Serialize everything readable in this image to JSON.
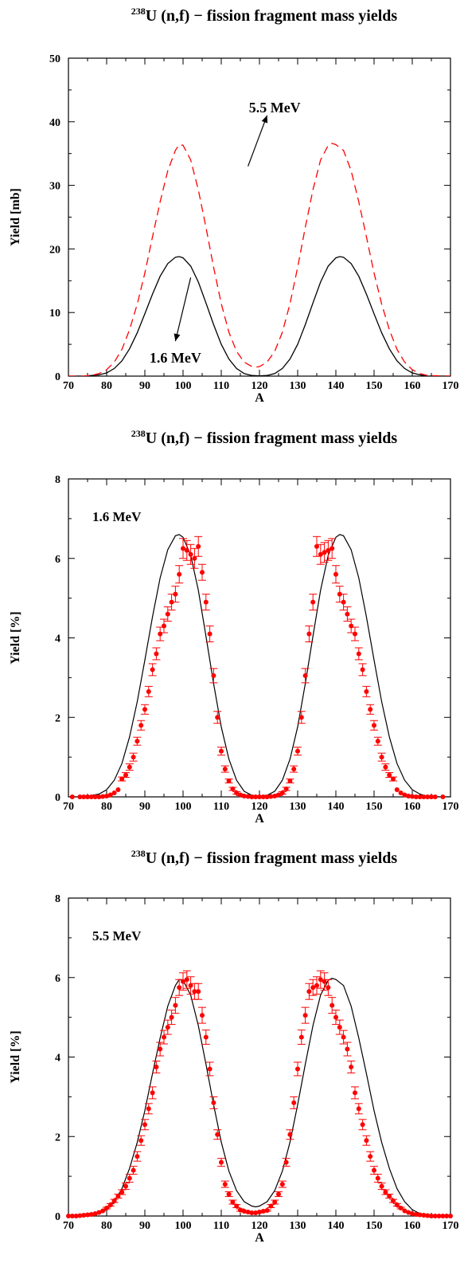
{
  "chart_data": [
    {
      "type": "line",
      "title_sup": "238",
      "title": "U (n,f) − fission fragment mass yields",
      "xlabel": "A",
      "ylabel": "Yield [mb]",
      "xlim": [
        70,
        170
      ],
      "ylim": [
        0,
        50
      ],
      "xticks": [
        "70",
        "80",
        "90",
        "100",
        "110",
        "120",
        "130",
        "140",
        "150",
        "160",
        "170"
      ],
      "yticks": [
        "0",
        "10",
        "20",
        "30",
        "40",
        "50"
      ],
      "grid": false,
      "series": [
        {
          "name": "1.6 MeV",
          "style": "solid",
          "color": "#000000",
          "x": [
            70,
            74,
            78,
            80,
            82,
            84,
            86,
            88,
            90,
            92,
            94,
            96,
            98,
            99,
            100,
            102,
            104,
            106,
            108,
            110,
            112,
            114,
            116,
            118,
            120,
            122,
            124,
            126,
            128,
            130,
            132,
            134,
            136,
            138,
            140,
            141,
            142,
            144,
            146,
            148,
            150,
            152,
            154,
            156,
            158,
            160,
            162,
            164,
            166,
            170
          ],
          "y": [
            0,
            0,
            0.2,
            0.5,
            1.2,
            2.4,
            4.3,
            6.8,
            9.8,
            12.9,
            15.7,
            17.7,
            18.7,
            18.8,
            18.6,
            17.3,
            14.8,
            11.5,
            8.1,
            5.0,
            2.7,
            1.2,
            0.4,
            0.1,
            0.05,
            0.1,
            0.4,
            1.2,
            2.7,
            5.0,
            8.1,
            11.5,
            14.8,
            17.3,
            18.6,
            18.8,
            18.7,
            17.7,
            15.7,
            12.9,
            9.8,
            6.8,
            4.3,
            2.4,
            1.2,
            0.5,
            0.2,
            0,
            0,
            0
          ]
        },
        {
          "name": "5.5 MeV",
          "style": "dashed",
          "color": "#ff0000",
          "x": [
            70,
            74,
            76,
            78,
            80,
            82,
            84,
            86,
            88,
            90,
            92,
            94,
            96,
            98,
            99,
            100,
            102,
            104,
            106,
            108,
            110,
            112,
            114,
            116,
            118,
            119,
            120,
            122,
            124,
            126,
            128,
            130,
            132,
            134,
            136,
            138,
            139,
            140,
            142,
            144,
            146,
            148,
            150,
            152,
            154,
            156,
            158,
            160,
            162,
            164,
            170
          ],
          "y": [
            0,
            0,
            0.1,
            0.4,
            1.0,
            2.2,
            4.2,
            7.3,
            11.3,
            16.2,
            21.9,
            27.4,
            32.3,
            35.5,
            36.4,
            36.3,
            34.0,
            29.3,
            23.4,
            17.1,
            11.4,
            6.9,
            3.9,
            2.2,
            1.5,
            1.4,
            1.5,
            2.2,
            3.9,
            6.9,
            11.4,
            17.1,
            23.4,
            29.3,
            34.0,
            36.3,
            36.6,
            36.4,
            35.5,
            32.3,
            27.4,
            21.9,
            16.2,
            11.3,
            7.3,
            4.2,
            2.2,
            1.0,
            0.4,
            0.1,
            0
          ]
        }
      ],
      "annotations": [
        {
          "text": "5.5 MeV",
          "x": 124,
          "y": 41.5
        },
        {
          "text": "1.6 MeV",
          "x": 98,
          "y": 2.1
        }
      ],
      "arrows": [
        {
          "from": [
            117,
            33
          ],
          "to": [
            122,
            41
          ]
        },
        {
          "from": [
            102,
            15.5
          ],
          "to": [
            98,
            5.5
          ]
        }
      ]
    },
    {
      "type": "scatter",
      "title_sup": "238",
      "title": "U (n,f) − fission fragment mass yields",
      "xlabel": "A",
      "ylabel": "Yield [%]",
      "xlim": [
        70,
        170
      ],
      "ylim": [
        0,
        8
      ],
      "xticks": [
        "70",
        "80",
        "90",
        "100",
        "110",
        "120",
        "130",
        "140",
        "150",
        "160",
        "170"
      ],
      "yticks": [
        "0",
        "2",
        "4",
        "6",
        "8"
      ],
      "grid": false,
      "label": "1.6 MeV",
      "curve": {
        "x": [
          70,
          74,
          78,
          80,
          82,
          84,
          86,
          88,
          90,
          92,
          94,
          96,
          98,
          99,
          100,
          102,
          104,
          106,
          108,
          110,
          112,
          114,
          116,
          118,
          120,
          122,
          124,
          126,
          128,
          130,
          132,
          134,
          136,
          138,
          140,
          141,
          142,
          144,
          146,
          148,
          150,
          152,
          154,
          156,
          158,
          160,
          162,
          164,
          166,
          170
        ],
        "y": [
          0,
          0,
          0.07,
          0.18,
          0.42,
          0.84,
          1.51,
          2.39,
          3.44,
          4.53,
          5.51,
          6.22,
          6.57,
          6.6,
          6.53,
          6.08,
          5.2,
          4.04,
          2.85,
          1.76,
          0.95,
          0.42,
          0.14,
          0.04,
          0.02,
          0.04,
          0.14,
          0.42,
          0.95,
          1.76,
          2.85,
          4.04,
          5.2,
          6.08,
          6.53,
          6.6,
          6.57,
          6.22,
          5.51,
          4.53,
          3.44,
          2.39,
          1.51,
          0.84,
          0.42,
          0.18,
          0.07,
          0,
          0,
          0
        ]
      },
      "points": {
        "x": [
          71,
          73,
          74,
          75,
          76,
          77,
          78,
          79,
          80,
          81,
          82,
          83,
          84,
          85,
          86,
          87,
          88,
          89,
          90,
          91,
          92,
          93,
          94,
          95,
          96,
          97,
          98,
          99,
          100,
          101,
          102,
          103,
          104,
          105,
          106,
          107,
          108,
          109,
          110,
          111,
          112,
          113,
          114,
          115,
          116,
          117,
          118,
          119,
          120,
          121,
          122,
          123,
          124,
          125,
          126,
          127,
          128,
          129,
          130,
          131,
          132,
          133,
          134,
          135,
          136,
          137,
          138,
          139,
          140,
          141,
          142,
          143,
          144,
          145,
          146,
          147,
          148,
          149,
          150,
          151,
          152,
          153,
          154,
          155,
          156,
          157,
          158,
          159,
          160,
          161,
          162,
          163,
          164,
          165,
          166,
          168
        ],
        "y": [
          0,
          0,
          0,
          0,
          0,
          0,
          0,
          0.01,
          0.02,
          0.05,
          0.1,
          0.18,
          0.45,
          0.55,
          0.75,
          1.0,
          1.4,
          1.8,
          2.2,
          2.65,
          3.2,
          3.6,
          4.1,
          4.3,
          4.6,
          4.9,
          5.1,
          5.6,
          6.25,
          6.2,
          6.1,
          6.0,
          6.3,
          5.65,
          4.9,
          4.1,
          3.05,
          2.0,
          1.15,
          0.7,
          0.4,
          0.2,
          0.1,
          0.05,
          0.02,
          0.01,
          0,
          0,
          0,
          0,
          0,
          0.01,
          0.02,
          0.05,
          0.1,
          0.2,
          0.4,
          0.7,
          1.15,
          2.0,
          3.05,
          4.1,
          4.9,
          6.3,
          6.1,
          6.15,
          6.2,
          6.25,
          5.6,
          5.1,
          4.9,
          4.6,
          4.3,
          4.1,
          3.6,
          3.2,
          2.65,
          2.2,
          1.8,
          1.4,
          1.0,
          0.75,
          0.55,
          0.45,
          0.18,
          0.1,
          0.05,
          0.02,
          0.01,
          0,
          0,
          0,
          0,
          0,
          0,
          0
        ],
        "err": [
          0,
          0,
          0,
          0,
          0,
          0,
          0,
          0,
          0,
          0,
          0,
          0,
          0.05,
          0.06,
          0.08,
          0.1,
          0.1,
          0.12,
          0.12,
          0.13,
          0.15,
          0.15,
          0.17,
          0.17,
          0.18,
          0.2,
          0.2,
          0.22,
          0.25,
          0.25,
          0.25,
          0.25,
          0.25,
          0.2,
          0.2,
          0.2,
          0.18,
          0.15,
          0.1,
          0.08,
          0.05,
          0.04,
          0.03,
          0.02,
          0,
          0,
          0,
          0,
          0,
          0,
          0,
          0,
          0,
          0.02,
          0.03,
          0.04,
          0.05,
          0.08,
          0.1,
          0.15,
          0.18,
          0.2,
          0.2,
          0.25,
          0.25,
          0.25,
          0.25,
          0.25,
          0.22,
          0.2,
          0.2,
          0.18,
          0.17,
          0.17,
          0.15,
          0.15,
          0.13,
          0.12,
          0.12,
          0.1,
          0.1,
          0.08,
          0.06,
          0.05,
          0,
          0,
          0,
          0,
          0,
          0,
          0,
          0,
          0,
          0,
          0,
          0
        ]
      }
    },
    {
      "type": "scatter",
      "title_sup": "238",
      "title": "U (n,f) − fission fragment mass yields",
      "xlabel": "A",
      "ylabel": "Yield [%]",
      "xlim": [
        70,
        170
      ],
      "ylim": [
        0,
        8
      ],
      "xticks": [
        "70",
        "80",
        "90",
        "100",
        "110",
        "120",
        "130",
        "140",
        "150",
        "160",
        "170"
      ],
      "yticks": [
        "0",
        "2",
        "4",
        "6",
        "8"
      ],
      "grid": false,
      "label": "5.5 MeV",
      "curve": {
        "x": [
          70,
          74,
          76,
          78,
          80,
          82,
          84,
          86,
          88,
          90,
          92,
          94,
          96,
          98,
          99,
          100,
          102,
          104,
          106,
          108,
          110,
          112,
          114,
          116,
          118,
          119,
          120,
          122,
          124,
          126,
          128,
          130,
          132,
          134,
          136,
          138,
          139,
          140,
          142,
          144,
          146,
          148,
          150,
          152,
          154,
          156,
          158,
          160,
          162,
          164,
          170
        ],
        "y": [
          0,
          0,
          0.02,
          0.06,
          0.16,
          0.36,
          0.69,
          1.2,
          1.85,
          2.65,
          3.58,
          4.48,
          5.28,
          5.8,
          5.95,
          5.93,
          5.56,
          4.79,
          3.82,
          2.8,
          1.86,
          1.13,
          0.64,
          0.36,
          0.25,
          0.23,
          0.25,
          0.36,
          0.64,
          1.13,
          1.86,
          2.8,
          3.82,
          4.79,
          5.56,
          5.93,
          5.98,
          5.95,
          5.8,
          5.28,
          4.48,
          3.58,
          2.65,
          1.85,
          1.2,
          0.69,
          0.36,
          0.16,
          0.06,
          0.02,
          0
        ]
      },
      "points": {
        "x": [
          70,
          71,
          72,
          73,
          74,
          75,
          76,
          77,
          78,
          79,
          80,
          81,
          82,
          83,
          84,
          85,
          86,
          87,
          88,
          89,
          90,
          91,
          92,
          93,
          94,
          95,
          96,
          97,
          98,
          99,
          100,
          101,
          102,
          103,
          104,
          105,
          106,
          107,
          108,
          109,
          110,
          111,
          112,
          113,
          114,
          115,
          116,
          117,
          118,
          119,
          120,
          121,
          122,
          123,
          124,
          125,
          126,
          127,
          128,
          129,
          130,
          131,
          132,
          133,
          134,
          135,
          136,
          137,
          138,
          139,
          140,
          141,
          142,
          143,
          144,
          145,
          146,
          147,
          148,
          149,
          150,
          151,
          152,
          153,
          154,
          155,
          156,
          157,
          158,
          159,
          160,
          161,
          162,
          163,
          164,
          165,
          166,
          167,
          168,
          169,
          170
        ],
        "y": [
          0,
          0,
          0,
          0.01,
          0.02,
          0.03,
          0.04,
          0.06,
          0.09,
          0.13,
          0.2,
          0.28,
          0.38,
          0.5,
          0.6,
          0.75,
          0.95,
          1.15,
          1.5,
          1.9,
          2.3,
          2.7,
          3.1,
          3.75,
          4.2,
          4.5,
          4.75,
          5.0,
          5.3,
          5.75,
          5.9,
          5.95,
          5.8,
          5.65,
          5.65,
          5.05,
          4.5,
          3.7,
          2.85,
          2.05,
          1.35,
          0.8,
          0.55,
          0.35,
          0.25,
          0.15,
          0.12,
          0.1,
          0.08,
          0.08,
          0.1,
          0.12,
          0.14,
          0.25,
          0.35,
          0.55,
          0.8,
          1.35,
          2.05,
          2.85,
          3.7,
          4.5,
          5.05,
          5.65,
          5.75,
          5.8,
          5.95,
          5.9,
          5.75,
          5.3,
          5.0,
          4.75,
          4.5,
          4.2,
          3.75,
          3.1,
          2.7,
          2.3,
          1.9,
          1.5,
          1.15,
          0.95,
          0.75,
          0.6,
          0.5,
          0.38,
          0.28,
          0.2,
          0.13,
          0.09,
          0.06,
          0.04,
          0.03,
          0.02,
          0.01,
          0,
          0,
          0,
          0,
          0,
          0
        ],
        "err": [
          0,
          0,
          0,
          0,
          0,
          0,
          0,
          0,
          0,
          0,
          0.02,
          0.03,
          0.04,
          0.05,
          0.06,
          0.08,
          0.1,
          0.1,
          0.12,
          0.12,
          0.13,
          0.13,
          0.15,
          0.15,
          0.17,
          0.17,
          0.18,
          0.18,
          0.2,
          0.2,
          0.22,
          0.22,
          0.22,
          0.2,
          0.2,
          0.2,
          0.18,
          0.17,
          0.15,
          0.12,
          0.1,
          0.08,
          0.06,
          0.05,
          0.04,
          0.03,
          0.02,
          0.02,
          0.02,
          0.02,
          0.02,
          0.02,
          0.02,
          0.04,
          0.05,
          0.06,
          0.08,
          0.1,
          0.12,
          0.15,
          0.17,
          0.18,
          0.2,
          0.2,
          0.2,
          0.22,
          0.22,
          0.22,
          0.2,
          0.2,
          0.18,
          0.18,
          0.17,
          0.17,
          0.15,
          0.15,
          0.13,
          0.13,
          0.12,
          0.12,
          0.1,
          0.1,
          0.08,
          0.06,
          0.05,
          0.04,
          0.03,
          0.02,
          0,
          0,
          0,
          0,
          0,
          0,
          0,
          0,
          0,
          0,
          0,
          0,
          0
        ]
      }
    }
  ]
}
